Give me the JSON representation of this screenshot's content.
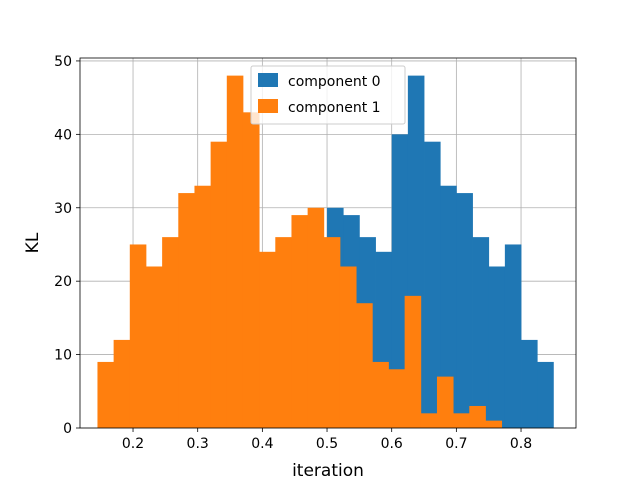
{
  "chart_data": {
    "type": "bar",
    "xlabel": "iteration",
    "ylabel": "KL",
    "xlim": [
      0.118,
      0.885
    ],
    "ylim": [
      0,
      50.4
    ],
    "xticks": [
      0.2,
      0.3,
      0.4,
      0.5,
      0.6,
      0.7,
      0.8
    ],
    "xtick_labels": [
      "0.2",
      "0.3",
      "0.4",
      "0.5",
      "0.6",
      "0.7",
      "0.8"
    ],
    "yticks": [
      0,
      10,
      20,
      30,
      40,
      50
    ],
    "ytick_labels": [
      "0",
      "10",
      "20",
      "30",
      "40",
      "50"
    ],
    "grid": true,
    "legend_position": "top-center",
    "bin_width": 0.025,
    "series": [
      {
        "name": "component 0",
        "color": "#1f77b4",
        "bins": [
          {
            "x0": 0.5,
            "value": 30
          },
          {
            "x0": 0.525,
            "value": 29
          },
          {
            "x0": 0.55,
            "value": 26
          },
          {
            "x0": 0.575,
            "value": 24
          },
          {
            "x0": 0.6,
            "value": 40
          },
          {
            "x0": 0.625,
            "value": 48
          },
          {
            "x0": 0.65,
            "value": 39
          },
          {
            "x0": 0.675,
            "value": 33
          },
          {
            "x0": 0.7,
            "value": 32
          },
          {
            "x0": 0.725,
            "value": 26
          },
          {
            "x0": 0.75,
            "value": 22
          },
          {
            "x0": 0.775,
            "value": 25
          },
          {
            "x0": 0.8,
            "value": 12
          },
          {
            "x0": 0.825,
            "value": 9
          }
        ]
      },
      {
        "name": "component 1",
        "color": "#ff7f0e",
        "bins": [
          {
            "x0": 0.145,
            "value": 9
          },
          {
            "x0": 0.17,
            "value": 12
          },
          {
            "x0": 0.195,
            "value": 25
          },
          {
            "x0": 0.22,
            "value": 22
          },
          {
            "x0": 0.245,
            "value": 26
          },
          {
            "x0": 0.27,
            "value": 32
          },
          {
            "x0": 0.295,
            "value": 33
          },
          {
            "x0": 0.32,
            "value": 39
          },
          {
            "x0": 0.345,
            "value": 48
          },
          {
            "x0": 0.37,
            "value": 43
          },
          {
            "x0": 0.395,
            "value": 24
          },
          {
            "x0": 0.42,
            "value": 26
          },
          {
            "x0": 0.445,
            "value": 29
          },
          {
            "x0": 0.47,
            "value": 30
          },
          {
            "x0": 0.495,
            "value": 26
          },
          {
            "x0": 0.52,
            "value": 22
          },
          {
            "x0": 0.545,
            "value": 17
          },
          {
            "x0": 0.57,
            "value": 9
          },
          {
            "x0": 0.595,
            "value": 8
          },
          {
            "x0": 0.62,
            "value": 18
          },
          {
            "x0": 0.645,
            "value": 2
          },
          {
            "x0": 0.67,
            "value": 7
          },
          {
            "x0": 0.695,
            "value": 2
          },
          {
            "x0": 0.72,
            "value": 3
          },
          {
            "x0": 0.745,
            "value": 1
          }
        ]
      }
    ]
  }
}
